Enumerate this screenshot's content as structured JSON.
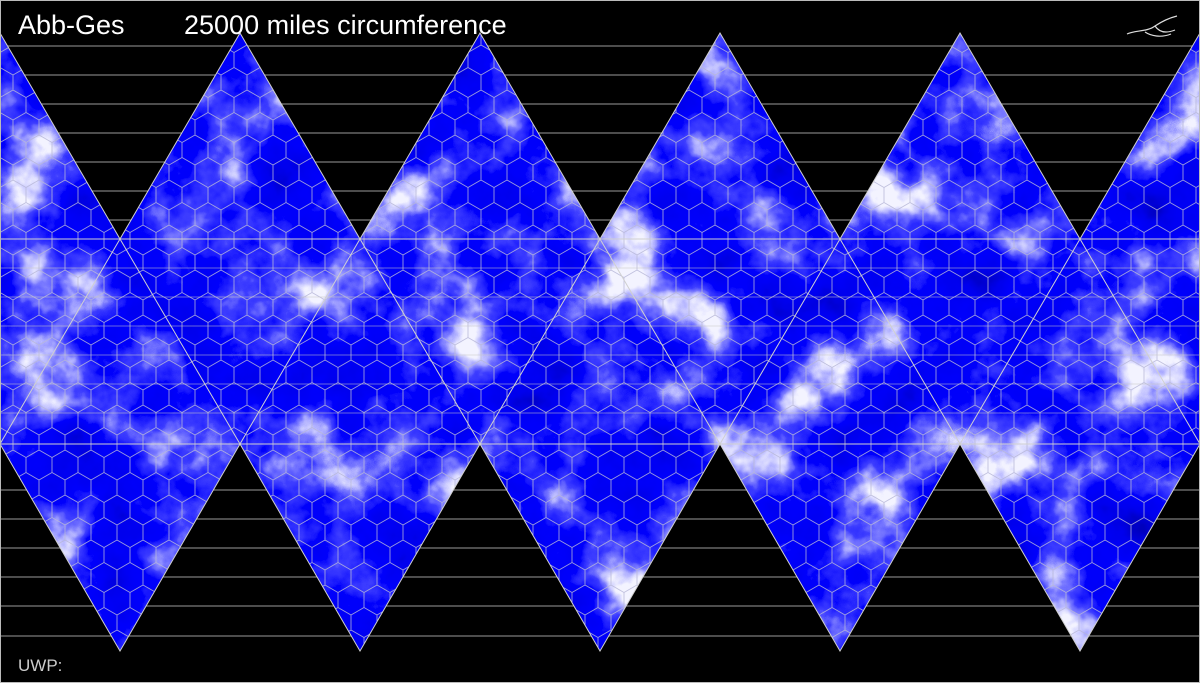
{
  "header": {
    "world_name": "Abb-Ges",
    "circumference": "25000 miles circumference"
  },
  "footer": {
    "uwp": "UWP:"
  }
}
